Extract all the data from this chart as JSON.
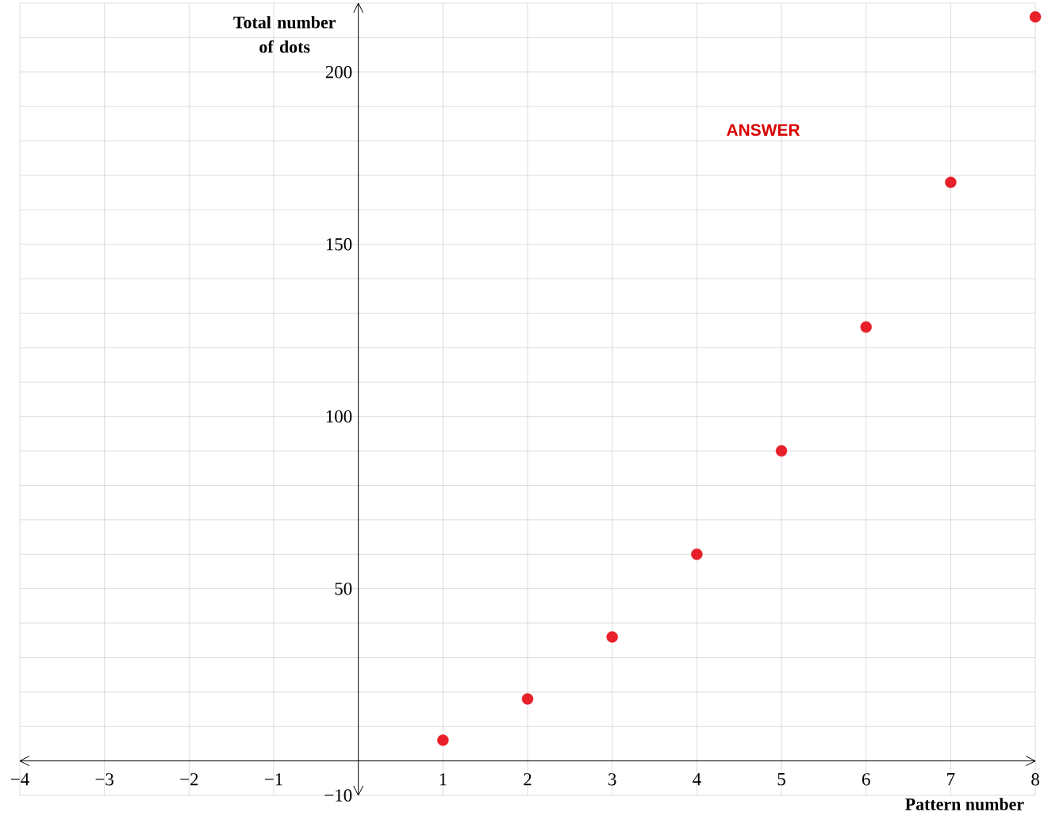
{
  "chart_data": {
    "type": "scatter",
    "xlabel": "Pattern number",
    "ylabel": "Total number of dots",
    "x": [
      1,
      2,
      3,
      4,
      5,
      6,
      7,
      8
    ],
    "series": [
      {
        "color": "#e8202a",
        "values": [
          6,
          18,
          36,
          60,
          90,
          126,
          168,
          216
        ]
      }
    ],
    "xlim": [
      -4,
      8
    ],
    "ylim": [
      -10,
      220
    ],
    "xticks": [
      {
        "value": -4,
        "label": "−4"
      },
      {
        "value": -3,
        "label": "−3"
      },
      {
        "value": -2,
        "label": "−2"
      },
      {
        "value": -1,
        "label": "−1"
      },
      {
        "value": 0,
        "label": null
      },
      1,
      2,
      3,
      4,
      5,
      6,
      7,
      8
    ],
    "yticks": [
      {
        "value": -10,
        "label": "−10"
      },
      {
        "value": 0,
        "label": null
      },
      {
        "value": 10,
        "label": null
      },
      {
        "value": 20,
        "label": null
      },
      {
        "value": 30,
        "label": null
      },
      {
        "value": 40,
        "label": null
      },
      50,
      {
        "value": 60,
        "label": null
      },
      {
        "value": 70,
        "label": null
      },
      {
        "value": 80,
        "label": null
      },
      {
        "value": 90,
        "label": null
      },
      100,
      {
        "value": 110,
        "label": null
      },
      {
        "value": 120,
        "label": null
      },
      {
        "value": 130,
        "label": null
      },
      {
        "value": 140,
        "label": null
      },
      150,
      {
        "value": 160,
        "label": null
      },
      {
        "value": 170,
        "label": null
      },
      {
        "value": 180,
        "label": null
      },
      {
        "value": 190,
        "label": null
      },
      200,
      {
        "value": 210,
        "label": null
      },
      {
        "value": 220,
        "label": null
      }
    ],
    "grid": true,
    "annotations": [
      "ANSWER"
    ]
  }
}
